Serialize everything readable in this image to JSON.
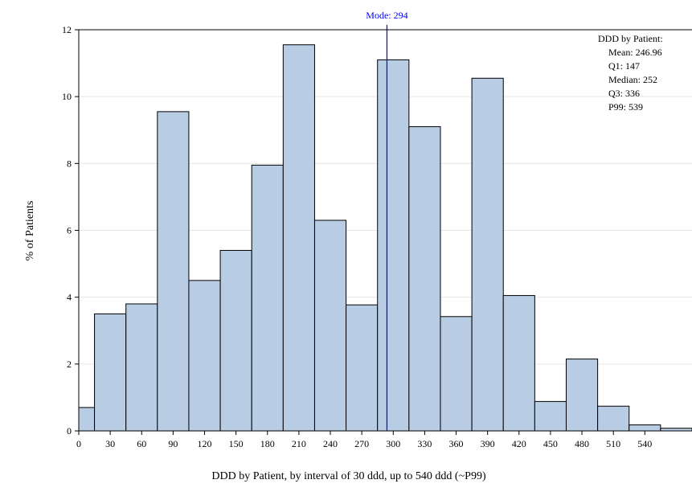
{
  "chart_data": {
    "type": "bar",
    "xlabel": "DDD by Patient, by interval of 30 ddd, up to 540 ddd (~P99)",
    "ylabel": "% of Patients",
    "ylim": [
      0,
      12
    ],
    "xlim": [
      0,
      585
    ],
    "bin_width": 30,
    "x_ticks": [
      0,
      30,
      60,
      90,
      120,
      150,
      180,
      210,
      240,
      270,
      300,
      330,
      360,
      390,
      420,
      450,
      480,
      510,
      540
    ],
    "y_ticks": [
      0,
      2,
      4,
      6,
      8,
      10,
      12
    ],
    "grid": "horizontal",
    "bins": [
      {
        "start": 0,
        "end": 15,
        "value": 0.7
      },
      {
        "start": 15,
        "end": 45,
        "value": 3.5
      },
      {
        "start": 45,
        "end": 75,
        "value": 3.8
      },
      {
        "start": 75,
        "end": 105,
        "value": 9.55
      },
      {
        "start": 105,
        "end": 135,
        "value": 4.5
      },
      {
        "start": 135,
        "end": 165,
        "value": 5.4
      },
      {
        "start": 165,
        "end": 195,
        "value": 7.95
      },
      {
        "start": 195,
        "end": 225,
        "value": 11.55
      },
      {
        "start": 225,
        "end": 255,
        "value": 6.3
      },
      {
        "start": 255,
        "end": 285,
        "value": 3.77
      },
      {
        "start": 285,
        "end": 315,
        "value": 11.1
      },
      {
        "start": 315,
        "end": 345,
        "value": 9.1
      },
      {
        "start": 345,
        "end": 375,
        "value": 3.42
      },
      {
        "start": 375,
        "end": 405,
        "value": 10.55
      },
      {
        "start": 405,
        "end": 435,
        "value": 4.05
      },
      {
        "start": 435,
        "end": 465,
        "value": 0.88
      },
      {
        "start": 465,
        "end": 495,
        "value": 2.15
      },
      {
        "start": 495,
        "end": 525,
        "value": 0.74
      },
      {
        "start": 525,
        "end": 555,
        "value": 0.18
      },
      {
        "start": 555,
        "end": 585,
        "value": 0.08
      }
    ],
    "reference_line": {
      "label": "Mode: 294",
      "x": 294,
      "color": "#0000ff"
    },
    "bar_fill": "#b8cce4",
    "bar_stroke": "#000000",
    "stats_box": {
      "placement": "top-right",
      "title": "DDD by Patient:",
      "lines": [
        "Mean: 246.96",
        "Q1: 147",
        "Median: 252",
        "Q3: 336",
        "P99: 539"
      ]
    }
  }
}
